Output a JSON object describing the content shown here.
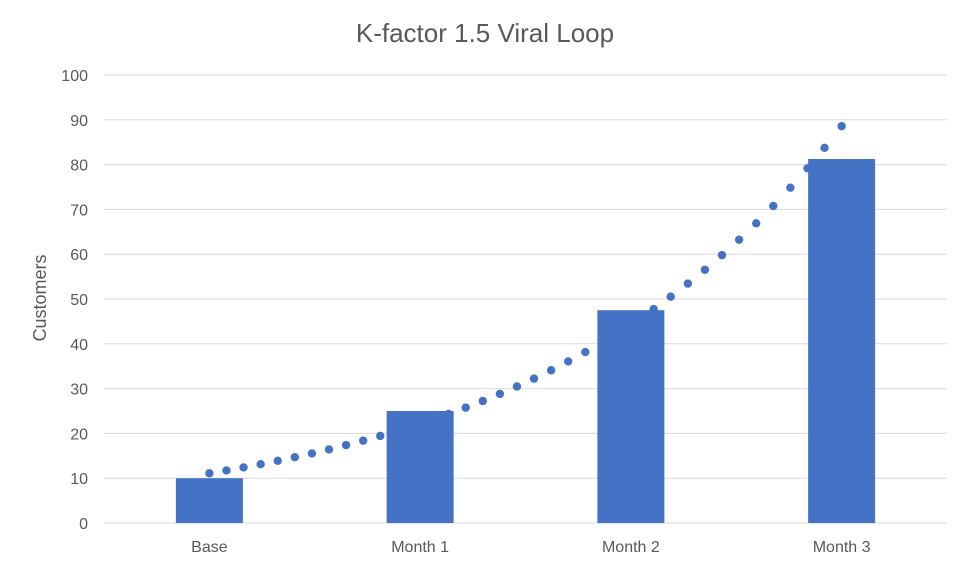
{
  "chart_data": {
    "type": "bar",
    "title": "K-factor 1.5 Viral Loop",
    "xlabel": "",
    "ylabel": "Customers",
    "categories": [
      "Base",
      "Month 1",
      "Month 2",
      "Month 3"
    ],
    "series": [
      {
        "values": [
          10,
          25,
          47.5,
          81.25
        ]
      }
    ],
    "trendline": {
      "type": "exponential",
      "style": "dotted"
    },
    "ylim": [
      0,
      100
    ],
    "yticks": [
      0,
      10,
      20,
      30,
      40,
      50,
      60,
      70,
      80,
      90,
      100
    ],
    "grid": true,
    "legend": "none",
    "colors": {
      "bar": "#4472c4",
      "trend": "#4472c4",
      "grid": "#d9d9d9",
      "text": "#595959"
    }
  }
}
